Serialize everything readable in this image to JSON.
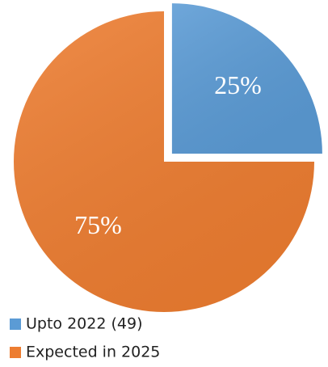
{
  "chart_data": {
    "type": "pie",
    "categories": [
      "Upto 2022 (49)",
      "Expected in 2025"
    ],
    "values": [
      25,
      75
    ],
    "value_labels": [
      "25%",
      "75%"
    ],
    "colors": [
      "#5b9bd5",
      "#ed7d31"
    ]
  }
}
